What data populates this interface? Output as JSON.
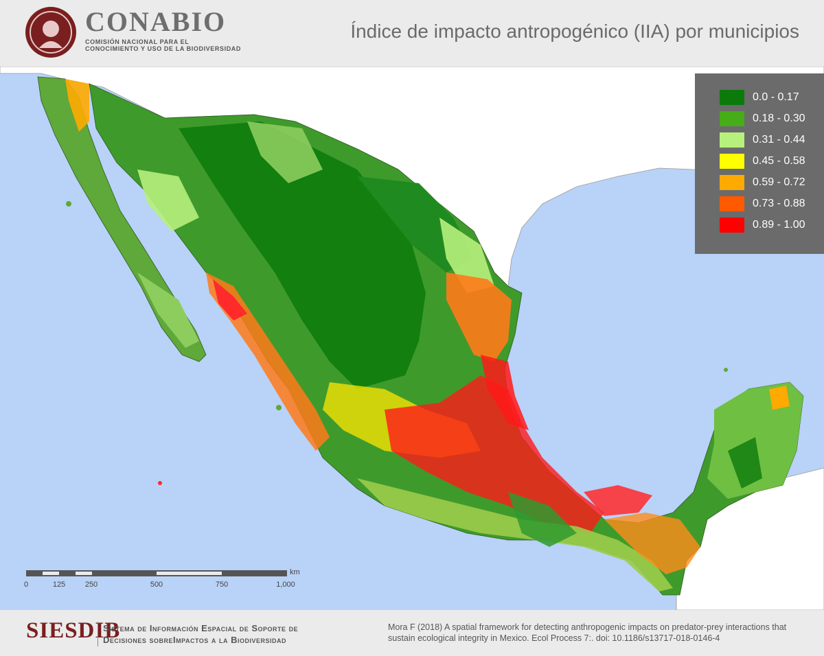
{
  "header": {
    "logo_name": "CONABIO",
    "logo_subtitle": "COMISIÓN NACIONAL PARA EL CONOCIMIENTO Y USO DE LA BIODIVERSIDAD",
    "title": "Índice de impacto antropogénico (IIA) por municipios"
  },
  "legend": {
    "items": [
      {
        "label": "0.0 - 0.17",
        "color": "#0b7a0b"
      },
      {
        "label": "0.18 - 0.30",
        "color": "#46ad18"
      },
      {
        "label": "0.31 - 0.44",
        "color": "#b7f07c"
      },
      {
        "label": "0.45 - 0.58",
        "color": "#ffff00"
      },
      {
        "label": "0.59 - 0.72",
        "color": "#ffaa00"
      },
      {
        "label": "0.73 - 0.88",
        "color": "#ff5a00"
      },
      {
        "label": "0.89 - 1.00",
        "color": "#ff0000"
      }
    ]
  },
  "scale_bar": {
    "unit": "km",
    "ticks": [
      "0",
      "125",
      "250",
      "500",
      "750",
      "1,000"
    ]
  },
  "footer": {
    "brand": "SIESDIB",
    "system_line1": "Sistema de Información Espacial de Soporte de",
    "system_line2": "Decisiones sobreImpactos a la Biodiversidad",
    "citation": "Mora F (2018) A spatial framework for detecting anthropogenic impacts on predator-prey interactions that sustain ecological integrity in Mexico. Ecol Process 7:. doi: 10.1186/s13717-018-0146-4"
  },
  "colors": {
    "ocean": "#b9d2f7",
    "land_other": "#ffffff",
    "brand": "#7a1f1f"
  }
}
